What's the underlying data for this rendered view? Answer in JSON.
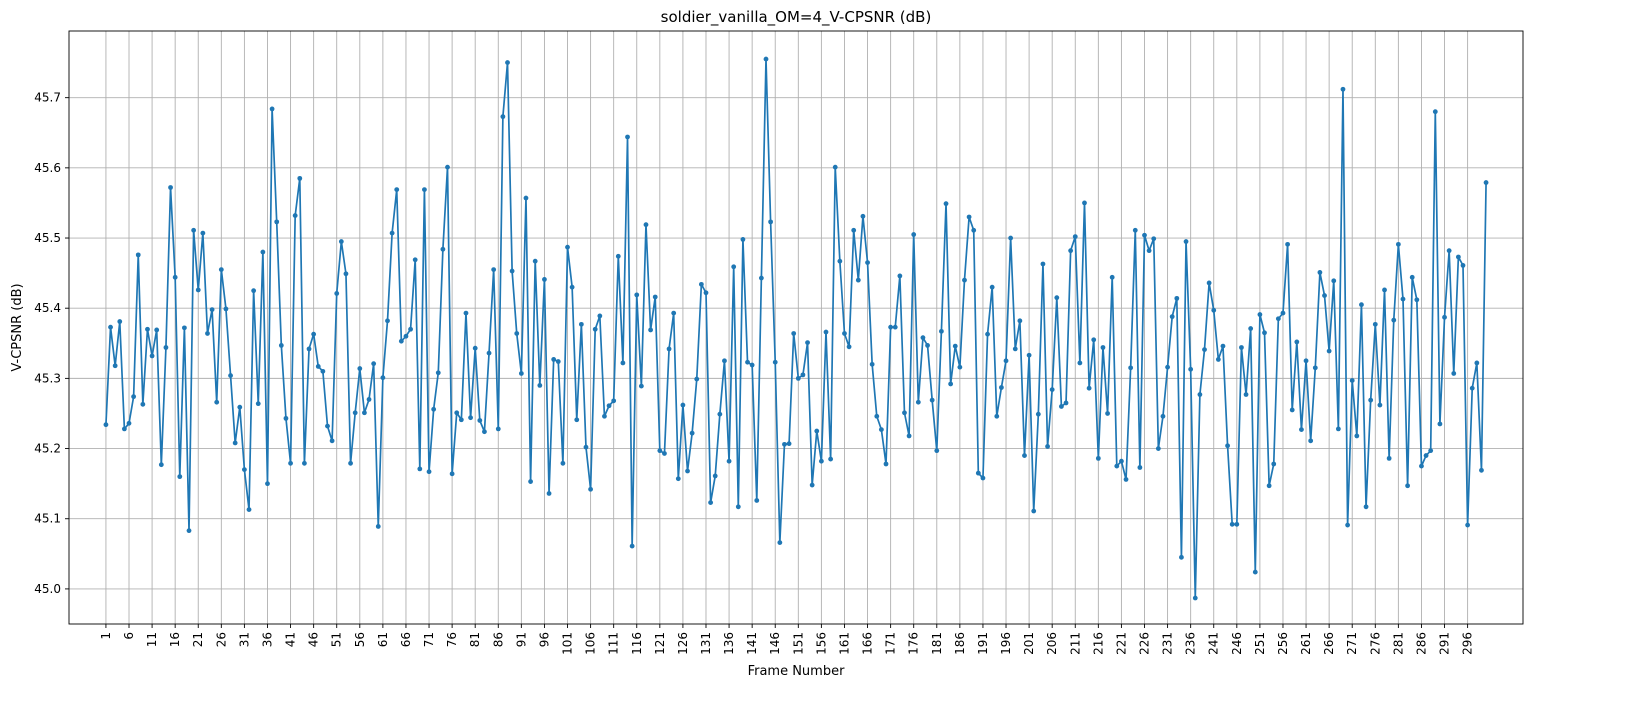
{
  "chart_data": {
    "type": "line",
    "title": "soldier_vanilla_OM=4_V-CPSNR (dB)",
    "xlabel": "Frame Number",
    "ylabel": "V-CPSNR (dB)",
    "ylim": [
      44.95,
      45.795
    ],
    "xlim": [
      -7,
      308
    ],
    "grid": true,
    "x_ticks": [
      1,
      6,
      11,
      16,
      21,
      26,
      31,
      36,
      41,
      46,
      51,
      56,
      61,
      66,
      71,
      76,
      81,
      86,
      91,
      96,
      101,
      106,
      111,
      116,
      121,
      126,
      131,
      136,
      141,
      146,
      151,
      156,
      161,
      166,
      171,
      176,
      181,
      186,
      191,
      196,
      201,
      206,
      211,
      216,
      221,
      226,
      231,
      236,
      241,
      246,
      251,
      256,
      261,
      266,
      271,
      276,
      281,
      286,
      291,
      296
    ],
    "y_ticks": [
      45.0,
      45.1,
      45.2,
      45.3,
      45.4,
      45.5,
      45.6,
      45.7
    ],
    "series": [
      {
        "name": "V-CPSNR",
        "color": "#1f77b4",
        "x_start": 1,
        "values": [
          45.234,
          45.373,
          45.318,
          45.381,
          45.228,
          45.236,
          45.274,
          45.476,
          45.263,
          45.37,
          45.332,
          45.369,
          45.177,
          45.344,
          45.572,
          45.444,
          45.16,
          45.372,
          45.083,
          45.511,
          45.426,
          45.507,
          45.364,
          45.398,
          45.266,
          45.455,
          45.399,
          45.304,
          45.208,
          45.259,
          45.17,
          45.113,
          45.425,
          45.264,
          45.48,
          45.15,
          45.684,
          45.523,
          45.347,
          45.243,
          45.179,
          45.532,
          45.585,
          45.179,
          45.342,
          45.363,
          45.317,
          45.31,
          45.232,
          45.211,
          45.421,
          45.495,
          45.449,
          45.179,
          45.251,
          45.314,
          45.251,
          45.27,
          45.321,
          45.089,
          45.301,
          45.382,
          45.507,
          45.569,
          45.353,
          45.36,
          45.37,
          45.469,
          45.171,
          45.569,
          45.167,
          45.256,
          45.308,
          45.484,
          45.601,
          45.164,
          45.251,
          45.241,
          45.393,
          45.244,
          45.343,
          45.24,
          45.224,
          45.336,
          45.455,
          45.228,
          45.673,
          45.75,
          45.453,
          45.364,
          45.307,
          45.557,
          45.153,
          45.467,
          45.29,
          45.441,
          45.136,
          45.327,
          45.324,
          45.179,
          45.487,
          45.43,
          45.241,
          45.377,
          45.202,
          45.142,
          45.37,
          45.389,
          45.246,
          45.261,
          45.268,
          45.474,
          45.322,
          45.644,
          45.061,
          45.419,
          45.289,
          45.519,
          45.369,
          45.416,
          45.197,
          45.193,
          45.342,
          45.393,
          45.157,
          45.262,
          45.168,
          45.222,
          45.299,
          45.434,
          45.422,
          45.123,
          45.161,
          45.249,
          45.325,
          45.182,
          45.459,
          45.117,
          45.498,
          45.323,
          45.319,
          45.126,
          45.443,
          45.755,
          45.523,
          45.323,
          45.066,
          45.206,
          45.207,
          45.364,
          45.3,
          45.305,
          45.351,
          45.148,
          45.225,
          45.182,
          45.366,
          45.185,
          45.601,
          45.467,
          45.364,
          45.345,
          45.511,
          45.44,
          45.531,
          45.465,
          45.32,
          45.246,
          45.227,
          45.178,
          45.373,
          45.373,
          45.446,
          45.251,
          45.218,
          45.505,
          45.266,
          45.358,
          45.347,
          45.269,
          45.197,
          45.367,
          45.549,
          45.292,
          45.346,
          45.316,
          45.44,
          45.53,
          45.511,
          45.165,
          45.158,
          45.363,
          45.43,
          45.246,
          45.287,
          45.325,
          45.5,
          45.342,
          45.382,
          45.19,
          45.333,
          45.111,
          45.249,
          45.463,
          45.203,
          45.284,
          45.415,
          45.26,
          45.265,
          45.482,
          45.502,
          45.322,
          45.55,
          45.286,
          45.355,
          45.186,
          45.344,
          45.25,
          45.444,
          45.175,
          45.182,
          45.156,
          45.315,
          45.511,
          45.173,
          45.504,
          45.482,
          45.499,
          45.2,
          45.246,
          45.316,
          45.388,
          45.414,
          45.045,
          45.495,
          45.313,
          44.987,
          45.277,
          45.341,
          45.436,
          45.397,
          45.327,
          45.346,
          45.204,
          45.092,
          45.092,
          45.344,
          45.277,
          45.371,
          45.024,
          45.391,
          45.365,
          45.147,
          45.178,
          45.385,
          45.393,
          45.491,
          45.255,
          45.352,
          45.227,
          45.325,
          45.211,
          45.315,
          45.451,
          45.418,
          45.339,
          45.439,
          45.228,
          45.712,
          45.091,
          45.297,
          45.218,
          45.405,
          45.117,
          45.269,
          45.377,
          45.262,
          45.426,
          45.186,
          45.383,
          45.491,
          45.413,
          45.147,
          45.444,
          45.412,
          45.175,
          45.19,
          45.197,
          45.68,
          45.235,
          45.387,
          45.482,
          45.307,
          45.473,
          45.461,
          45.091,
          45.286,
          45.322,
          45.169,
          45.579
        ]
      }
    ]
  }
}
